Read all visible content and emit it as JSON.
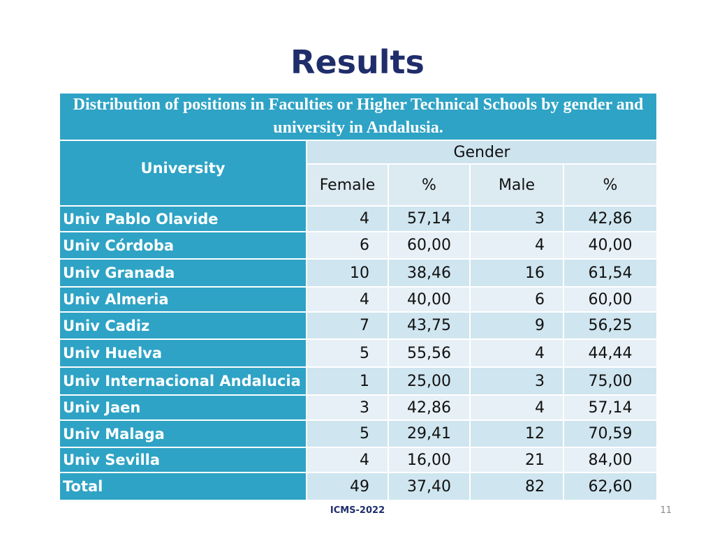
{
  "title": "Results",
  "table": {
    "caption": "Distribution of positions in Faculties or Higher Technical Schools by gender and university in Andalusia.",
    "university_header": "University",
    "gender_header": "Gender",
    "columns": [
      "Female",
      "%",
      "Male",
      "%"
    ],
    "rows": [
      {
        "university": "Univ Pablo Olavide",
        "female": "4",
        "female_pct": "57,14",
        "male": "3",
        "male_pct": "42,86"
      },
      {
        "university": "Univ Córdoba",
        "female": "6",
        "female_pct": "60,00",
        "male": "4",
        "male_pct": "40,00"
      },
      {
        "university": "Univ Granada",
        "female": "10",
        "female_pct": "38,46",
        "male": "16",
        "male_pct": "61,54"
      },
      {
        "university": "Univ Almeria",
        "female": "4",
        "female_pct": "40,00",
        "male": "6",
        "male_pct": "60,00"
      },
      {
        "university": "Univ Cadiz",
        "female": "7",
        "female_pct": "43,75",
        "male": "9",
        "male_pct": "56,25"
      },
      {
        "university": "Univ Huelva",
        "female": "5",
        "female_pct": "55,56",
        "male": "4",
        "male_pct": "44,44"
      },
      {
        "university": "Univ Internacional Andalucia",
        "female": "1",
        "female_pct": "25,00",
        "male": "3",
        "male_pct": "75,00"
      },
      {
        "university": "Univ Jaen",
        "female": "3",
        "female_pct": "42,86",
        "male": "4",
        "male_pct": "57,14"
      },
      {
        "university": "Univ Malaga",
        "female": "5",
        "female_pct": "29,41",
        "male": "12",
        "male_pct": "70,59"
      },
      {
        "university": "Univ Sevilla",
        "female": "4",
        "female_pct": "16,00",
        "male": "21",
        "male_pct": "84,00"
      },
      {
        "university": "Total",
        "female": "49",
        "female_pct": "37,40",
        "male": "82",
        "male_pct": "62,60"
      }
    ]
  },
  "footer": {
    "label": "ICMS-2022",
    "page_number": "11"
  },
  "colors": {
    "title": "#1f2d6b",
    "header_fill": "#2ea3c5",
    "row_band_dark": "#cfe5ef",
    "row_band_light": "#e6f0f6"
  }
}
